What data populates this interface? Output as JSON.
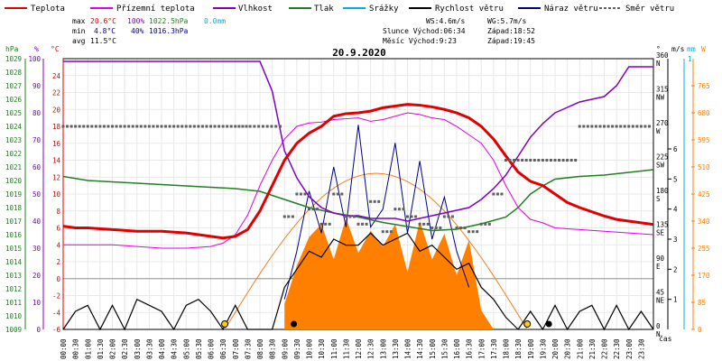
{
  "legend": [
    {
      "label": "Teplota",
      "color": "#e00000"
    },
    {
      "label": "Přízemní teplota",
      "color": "#e000e0"
    },
    {
      "label": "Vlhkost",
      "color": "#8000c0"
    },
    {
      "label": "Tlak",
      "color": "#208020"
    },
    {
      "label": "Srážky",
      "color": "#00b0e0"
    },
    {
      "label": "Rychlost větru",
      "color": "#000000"
    },
    {
      "label": "Náraz větru",
      "color": "#000080"
    },
    {
      "label": "Směr větru",
      "color": "#606060"
    }
  ],
  "stats": {
    "max_label": "max",
    "min_label": "min",
    "avg_label": "avg",
    "max_temp": "20.6°C",
    "max_hum": "100%",
    "max_press": "1022.5hPa",
    "max_rain": "0.0mm",
    "min_temp": "4.8°C",
    "min_hum": "40%",
    "min_press": "1016.3hPa",
    "avg_temp": "11.5°C",
    "ws": "WS:4.6m/s",
    "wg": "WG:5.7m/s",
    "sun": "Slunce Východ:06:34",
    "sun_set": "Západ:18:52",
    "moon": "Měsíc Východ:9:23",
    "moon_set": "Západ:19:45"
  },
  "date": "20.9.2020",
  "axis_units": {
    "hpa": "hPa",
    "pct": "%",
    "degc": "°C",
    "deg": "°",
    "ms": "m/s",
    "mm": "mm",
    "w": "W",
    "cas": "čas"
  },
  "colors": {
    "temp": "#e00000",
    "ground": "#e000e0",
    "hum": "#8000c0",
    "press": "#208020",
    "rain": "#00b0e0",
    "wind": "#000000",
    "gust": "#000080",
    "dir": "#606060",
    "solar": "#ff8000",
    "sunline": "#f08020"
  },
  "chart_data": {
    "type": "line",
    "x_unit": "hour",
    "xlim": [
      0,
      24
    ],
    "x_ticks": [
      "00:00",
      "00:30",
      "01:00",
      "01:30",
      "02:00",
      "02:30",
      "03:00",
      "03:30",
      "04:00",
      "04:30",
      "05:00",
      "05:30",
      "06:00",
      "06:30",
      "07:00",
      "07:30",
      "08:00",
      "08:30",
      "09:00",
      "09:30",
      "10:00",
      "10:30",
      "11:00",
      "11:30",
      "12:00",
      "12:30",
      "13:00",
      "13:30",
      "14:00",
      "14:30",
      "15:00",
      "15:30",
      "16:00",
      "16:30",
      "17:00",
      "17:30",
      "18:00",
      "18:30",
      "19:00",
      "19:30",
      "20:00",
      "20:30",
      "21:00",
      "21:30",
      "22:00",
      "22:30",
      "23:00",
      "23:30"
    ],
    "axes": {
      "pressure_hpa": {
        "min": 1009,
        "max": 1029,
        "ticks": [
          1009,
          1010,
          1011,
          1012,
          1013,
          1014,
          1015,
          1016,
          1017,
          1018,
          1019,
          1020,
          1021,
          1022,
          1023,
          1024,
          1025,
          1026,
          1027,
          1028,
          1029
        ]
      },
      "humidity_pct": {
        "min": 0,
        "max": 100,
        "ticks": [
          0,
          10,
          20,
          30,
          40,
          50,
          60,
          70,
          80,
          90,
          100
        ]
      },
      "temperature_c": {
        "min": -6,
        "max": 26,
        "ticks": [
          -6,
          -4,
          -2,
          0,
          2,
          4,
          6,
          8,
          10,
          12,
          14,
          16,
          18,
          20,
          22,
          24
        ]
      },
      "wind_dir_deg": {
        "min": 0,
        "max": 360,
        "ticks": [
          {
            "v": 0,
            "l": "0",
            "d": "N"
          },
          {
            "v": 45,
            "l": "45",
            "d": "NE"
          },
          {
            "v": 90,
            "l": "90",
            "d": "E"
          },
          {
            "v": 135,
            "l": "135",
            "d": "SE"
          },
          {
            "v": 180,
            "l": "180",
            "d": "S"
          },
          {
            "v": 225,
            "l": "225",
            "d": "SW"
          },
          {
            "v": 270,
            "l": "270",
            "d": "W"
          },
          {
            "v": 315,
            "l": "315",
            "d": "NW"
          },
          {
            "v": 360,
            "l": "360",
            "d": "N"
          }
        ]
      },
      "wind_ms": {
        "min": 0,
        "max": 9,
        "ticks": [
          1,
          2,
          3,
          4,
          5,
          6
        ]
      },
      "rain_mm": {
        "max_label": "1"
      },
      "solar_w": {
        "min": 0,
        "max": 850,
        "ticks": [
          0,
          85,
          170,
          255,
          340,
          425,
          510,
          595,
          680,
          765
        ]
      }
    },
    "series": [
      {
        "name": "Teplota",
        "axis": "temperature_c",
        "color": "#e00000",
        "x": [
          0,
          0.5,
          1,
          2,
          3,
          4,
          5,
          6,
          6.5,
          7,
          7.5,
          8,
          8.5,
          9,
          9.5,
          10,
          10.5,
          11,
          11.5,
          12,
          12.5,
          13,
          13.5,
          14,
          14.5,
          15,
          15.5,
          16,
          16.5,
          17,
          17.5,
          18,
          18.5,
          19,
          19.5,
          20,
          20.5,
          21,
          21.5,
          22,
          22.5,
          23,
          23.5,
          24
        ],
        "y": [
          6.2,
          6.0,
          6.0,
          5.8,
          5.6,
          5.6,
          5.4,
          5.0,
          4.8,
          5.0,
          5.8,
          8.0,
          11.0,
          14.0,
          16.0,
          17.2,
          18.0,
          19.2,
          19.5,
          19.6,
          19.8,
          20.2,
          20.4,
          20.6,
          20.5,
          20.3,
          20.0,
          19.6,
          19.0,
          18.0,
          16.5,
          14.5,
          12.6,
          11.5,
          11.0,
          10.0,
          9.0,
          8.4,
          7.9,
          7.4,
          7.0,
          6.8,
          6.6,
          6.4
        ]
      },
      {
        "name": "Přízemní teplota",
        "axis": "temperature_c",
        "color": "#e000e0",
        "x": [
          0,
          1,
          2,
          3,
          4,
          5,
          6,
          6.5,
          7,
          7.5,
          8,
          8.5,
          9,
          9.5,
          10,
          10.5,
          11,
          11.5,
          12,
          12.5,
          13,
          13.5,
          14,
          14.5,
          15,
          15.5,
          16,
          16.5,
          17,
          17.5,
          18,
          18.5,
          19,
          19.5,
          20,
          21,
          22,
          23,
          24
        ],
        "y": [
          4.0,
          4.0,
          4.0,
          3.8,
          3.6,
          3.6,
          3.8,
          4.2,
          5.2,
          7.5,
          11.0,
          14.0,
          16.5,
          18.0,
          18.4,
          18.5,
          18.8,
          18.9,
          19.0,
          18.6,
          18.8,
          19.2,
          19.6,
          19.4,
          19.0,
          18.8,
          18.0,
          17.0,
          16.0,
          14.0,
          11.0,
          8.4,
          7.0,
          6.6,
          6.0,
          5.8,
          5.6,
          5.4,
          5.2
        ]
      },
      {
        "name": "Vlhkost",
        "axis": "humidity_pct",
        "color": "#8000c0",
        "x": [
          0,
          1,
          2,
          3,
          4,
          5,
          6,
          7,
          8,
          8.5,
          9,
          9.5,
          10,
          10.5,
          11,
          11.5,
          12,
          12.5,
          13,
          13.5,
          14,
          14.5,
          15,
          15.5,
          16,
          16.5,
          17,
          17.5,
          18,
          18.5,
          19,
          19.5,
          20,
          20.5,
          21,
          21.5,
          22,
          22.5,
          23,
          23.5,
          24
        ],
        "y": [
          99,
          99,
          99,
          99,
          99,
          99,
          99,
          99,
          99,
          88,
          66,
          56,
          49,
          45,
          43,
          42,
          42,
          41,
          41,
          41,
          40,
          41,
          42,
          43,
          44,
          45,
          48,
          52,
          57,
          64,
          71,
          76,
          80,
          82,
          84,
          85,
          86,
          90,
          97,
          97,
          97
        ],
        "note": "shape follows image; humidity drops from 100% to ~40% during day"
      },
      {
        "name": "Tlak",
        "axis": "pressure_hpa",
        "color": "#208020",
        "x": [
          0,
          1,
          2,
          3,
          4,
          5,
          6,
          7,
          8,
          9,
          10,
          11,
          12,
          13,
          14,
          15,
          16,
          17,
          18,
          18.5,
          19,
          19.5,
          20,
          21,
          22,
          23,
          24
        ],
        "y": [
          1020.3,
          1020.0,
          1019.9,
          1019.8,
          1019.7,
          1019.6,
          1019.5,
          1019.4,
          1019.2,
          1018.6,
          1018.0,
          1017.6,
          1017.3,
          1016.9,
          1016.6,
          1016.3,
          1016.4,
          1016.8,
          1017.3,
          1018.0,
          1019.0,
          1019.6,
          1020.1,
          1020.3,
          1020.4,
          1020.6,
          1020.8
        ]
      },
      {
        "name": "Rychlost větru",
        "axis": "wind_ms",
        "color": "#000000",
        "x": [
          0,
          0.5,
          1,
          1.5,
          2,
          2.5,
          3,
          3.5,
          4,
          4.5,
          5,
          5.5,
          6,
          6.5,
          7,
          7.5,
          8,
          8.5,
          9,
          9.5,
          10,
          10.5,
          11,
          11.5,
          12,
          12.5,
          13,
          13.5,
          14,
          14.5,
          15,
          15.5,
          16,
          16.5,
          17,
          17.5,
          18,
          18.5,
          19,
          19.5,
          20,
          20.5,
          21,
          21.5,
          22,
          22.5,
          23,
          23.5,
          24
        ],
        "y": [
          0,
          0.6,
          0.8,
          0,
          0.8,
          0,
          1.0,
          0.8,
          0.6,
          0,
          0.8,
          1.0,
          0.6,
          0,
          0.8,
          0,
          0,
          0,
          1.4,
          2.0,
          2.6,
          2.4,
          3.0,
          2.8,
          2.8,
          3.2,
          2.8,
          3.0,
          3.2,
          2.6,
          2.8,
          2.4,
          2.0,
          2.2,
          1.4,
          1.0,
          0.4,
          0,
          0.6,
          0,
          0.8,
          0,
          0.6,
          0.8,
          0,
          0.8,
          0,
          0.6,
          0
        ]
      },
      {
        "name": "Náraz větru",
        "axis": "wind_ms",
        "color": "#000080",
        "x": [
          9,
          9.5,
          10,
          10.5,
          11,
          11.5,
          12,
          12.5,
          13,
          13.5,
          14,
          14.5,
          15,
          15.5,
          16,
          16.5
        ],
        "y": [
          1.0,
          2.6,
          4.6,
          3.2,
          5.4,
          3.4,
          6.8,
          3.4,
          4.0,
          6.2,
          3.2,
          5.6,
          3.0,
          4.4,
          2.6,
          1.4
        ]
      },
      {
        "name": "Směr větru",
        "axis": "wind_dir_deg",
        "color": "#606060",
        "x": [
          0,
          1,
          2,
          3,
          4,
          5,
          6,
          7,
          7.6,
          9,
          9.5,
          10,
          10.5,
          11,
          11.5,
          12,
          12.5,
          13,
          13.5,
          14,
          14.5,
          15,
          15.5,
          16,
          16.5,
          17,
          17.5,
          18,
          19,
          20,
          21,
          22,
          23,
          24
        ],
        "y": [
          270,
          270,
          270,
          270,
          270,
          270,
          270,
          270,
          270,
          150,
          180,
          160,
          140,
          180,
          150,
          140,
          170,
          130,
          160,
          150,
          140,
          135,
          150,
          135,
          130,
          140,
          180,
          225,
          225,
          225,
          270,
          270,
          270,
          270
        ]
      },
      {
        "name": "Solar",
        "axis": "solar_w",
        "color": "#ff8000",
        "x": [
          9,
          9.5,
          10,
          10.5,
          11,
          11.5,
          12,
          12.5,
          13,
          13.5,
          14,
          14.5,
          15,
          15.5,
          16,
          16.5,
          17,
          17.5
        ],
        "y": [
          80,
          200,
          290,
          330,
          220,
          350,
          240,
          310,
          260,
          330,
          180,
          340,
          220,
          300,
          170,
          280,
          60,
          0
        ]
      }
    ],
    "events": {
      "sunrise_h": 6.57,
      "sunset_h": 18.87,
      "moonrise_h": 9.38,
      "moonset_h": 19.75
    }
  }
}
